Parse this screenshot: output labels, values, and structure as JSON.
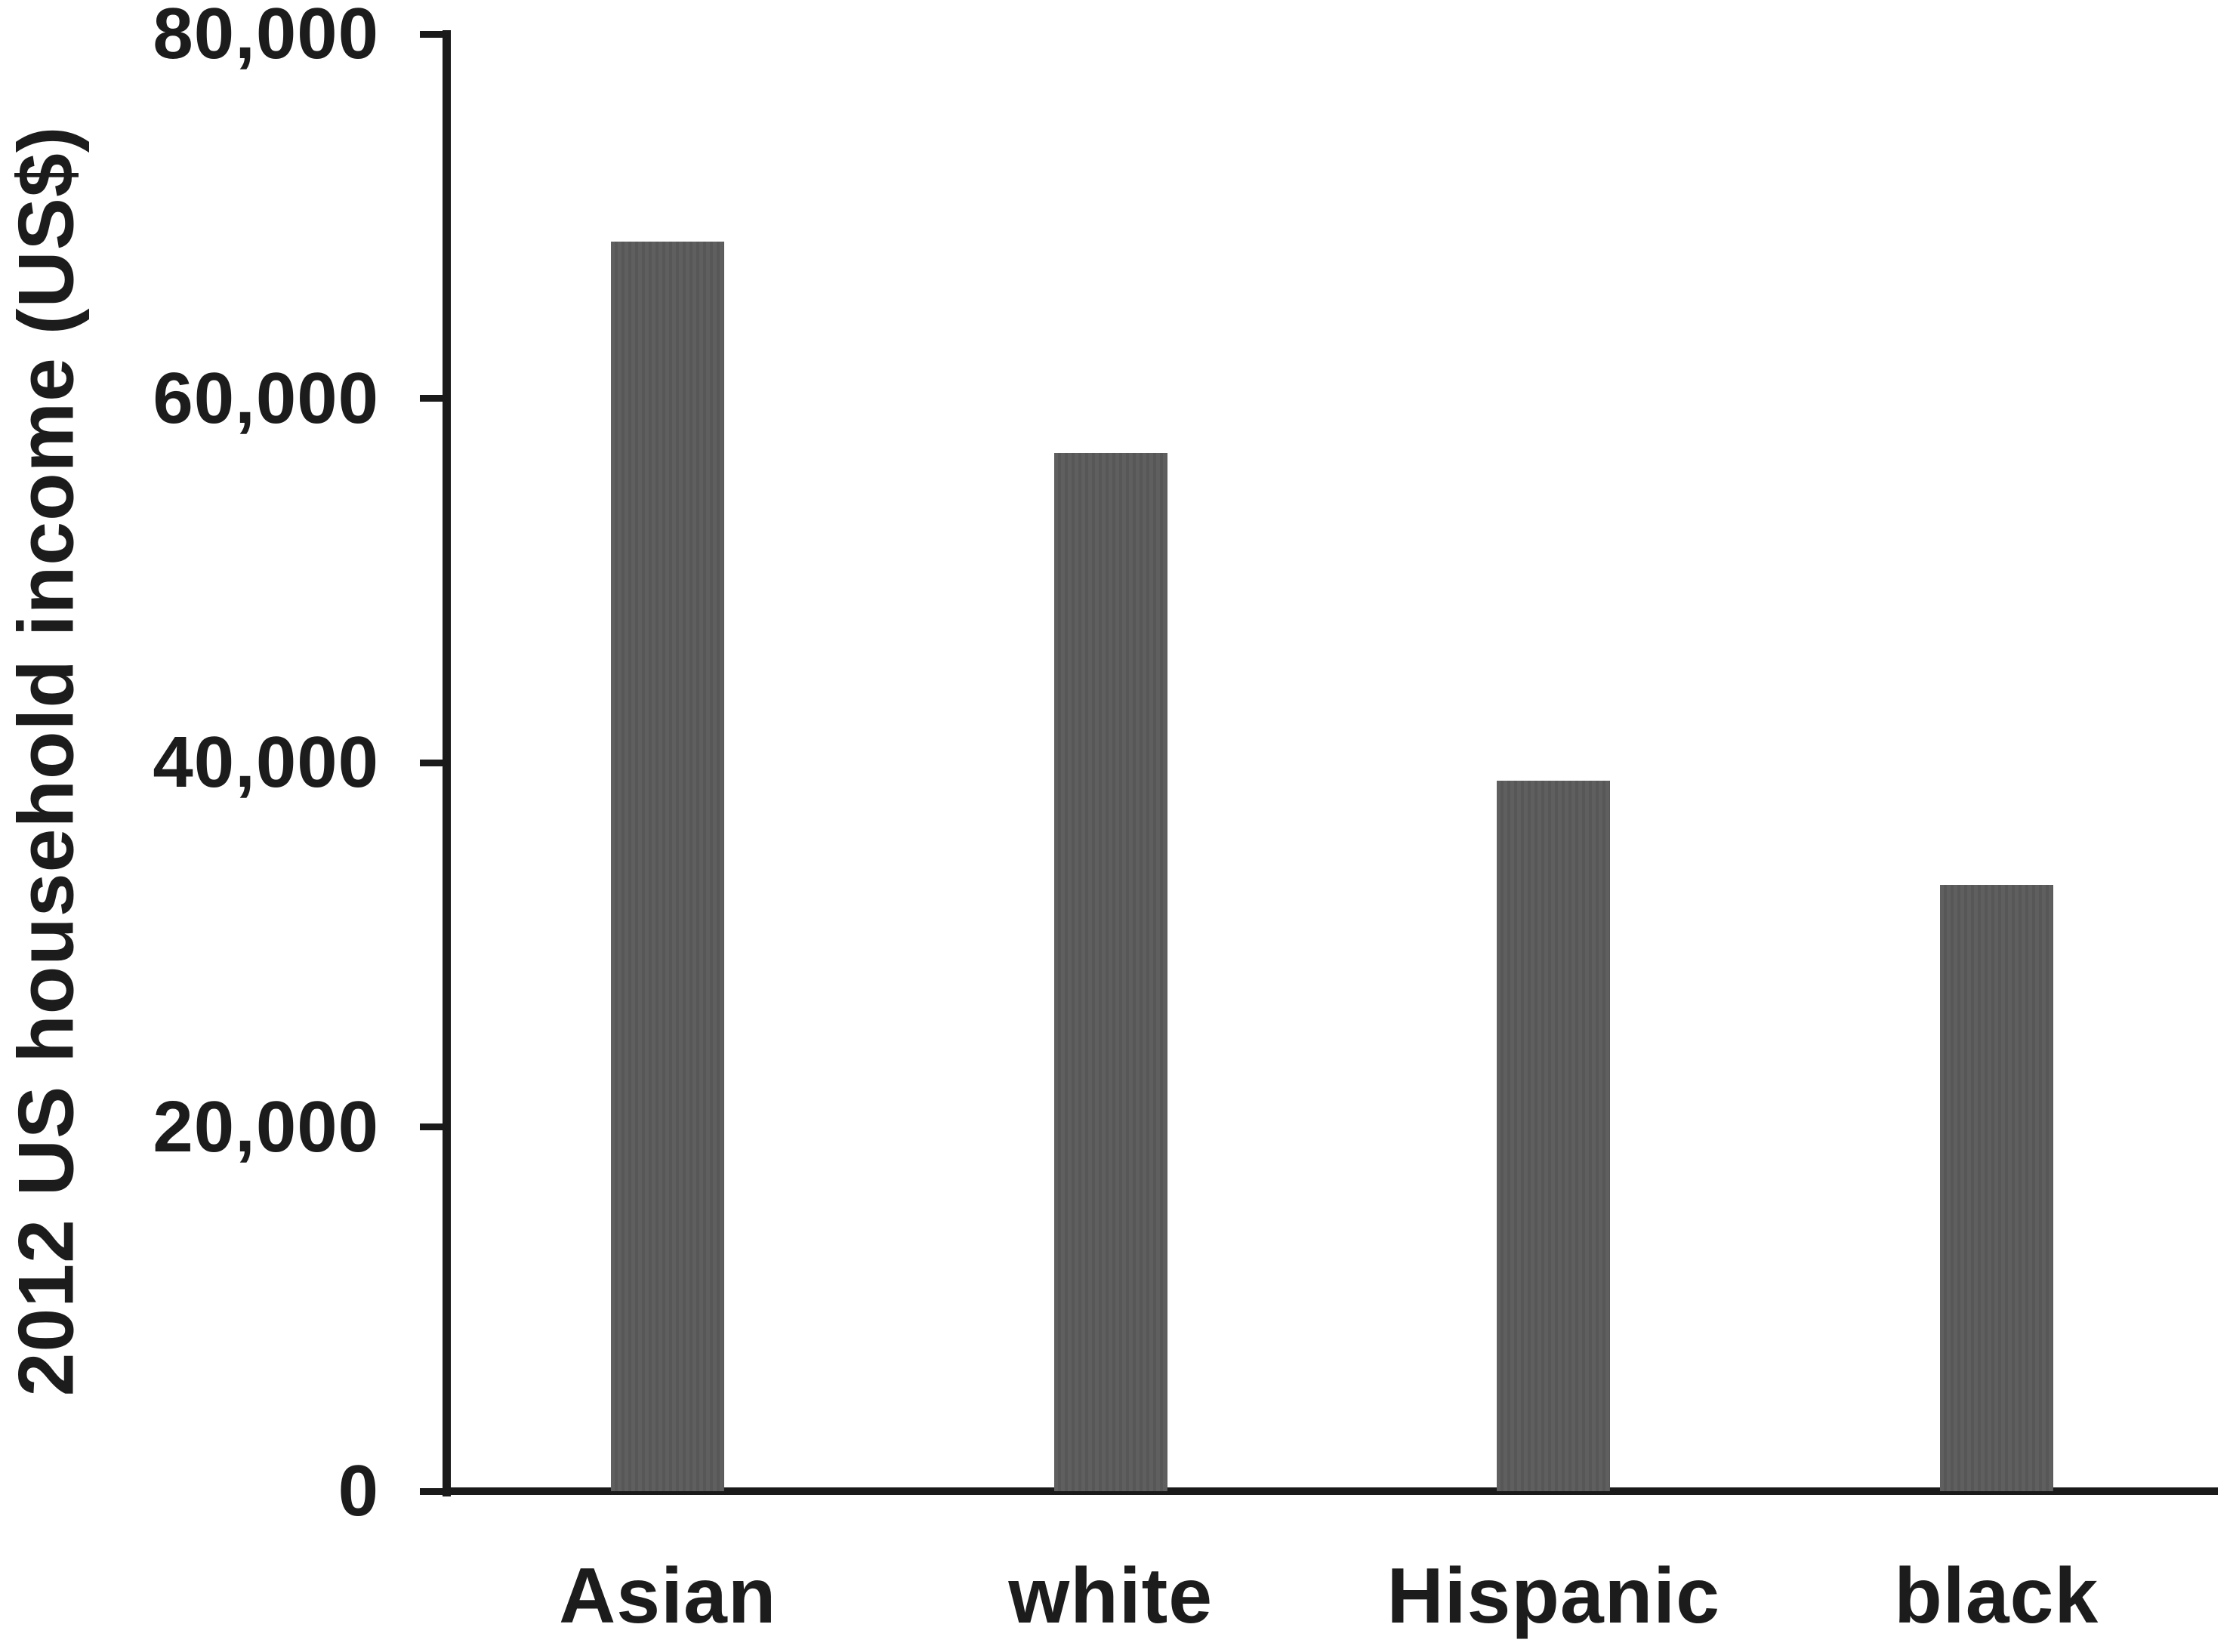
{
  "chart_data": {
    "type": "bar",
    "title": "",
    "xlabel": "",
    "ylabel": "2012 US household income (US$)",
    "categories": [
      "Asian",
      "white",
      "Hispanic",
      "black"
    ],
    "values": [
      68600,
      57000,
      39000,
      33300
    ],
    "series": [
      {
        "name": "2012 US household income (US$)",
        "values": [
          68600,
          57000,
          39000,
          33300
        ]
      }
    ],
    "ylim": [
      0,
      80000
    ],
    "yticks": [
      {
        "value": 0,
        "label": "0"
      },
      {
        "value": 20000,
        "label": "20,000"
      },
      {
        "value": 40000,
        "label": "40,000"
      },
      {
        "value": 60000,
        "label": "60,000"
      },
      {
        "value": 80000,
        "label": "80,000"
      }
    ],
    "grid": false,
    "legend_position": "none",
    "colors": {
      "bar": "#5f5f5f",
      "bar_stripe": "#575757",
      "axis": "#1a1a1a",
      "text": "#1c1c1c",
      "background": "#ffffff"
    }
  }
}
